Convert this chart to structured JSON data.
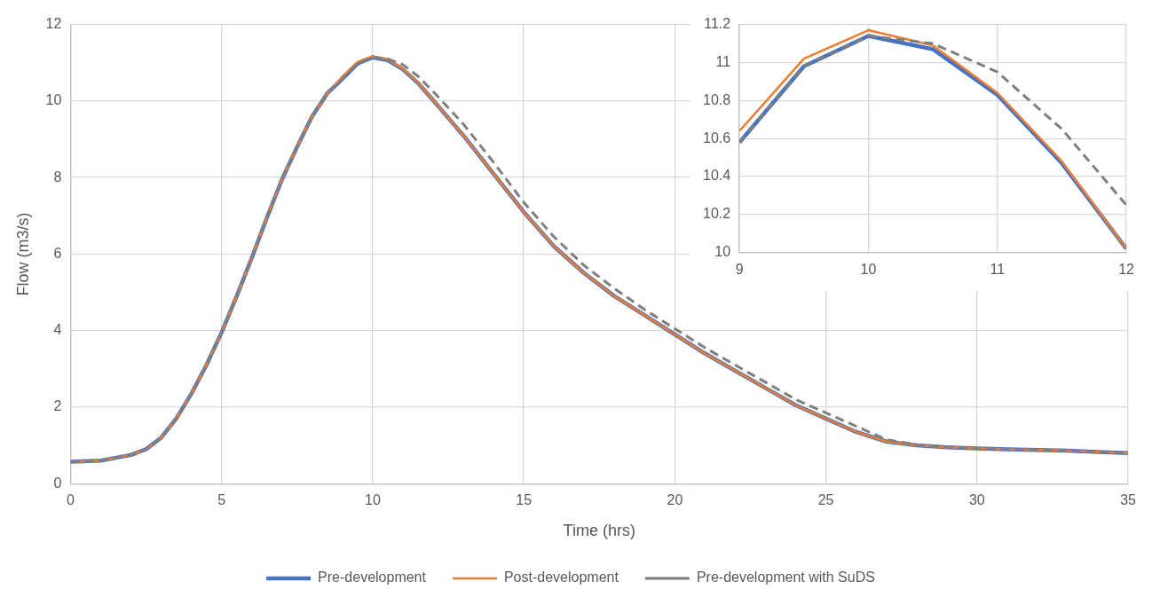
{
  "chart_data": [
    {
      "type": "line",
      "xlabel": "Time (hrs)",
      "ylabel": "Flow (m3/s)",
      "x": [
        0,
        1,
        2,
        2.5,
        3,
        3.5,
        4,
        4.5,
        5,
        5.5,
        6,
        6.5,
        7,
        7.5,
        8,
        8.5,
        9,
        9.5,
        10,
        10.5,
        11,
        11.5,
        12,
        13,
        14,
        15,
        16,
        17,
        18,
        19,
        20,
        21,
        22,
        23,
        24,
        25,
        26,
        27,
        28,
        29,
        30,
        31,
        32,
        33,
        34,
        35
      ],
      "series": [
        {
          "name": "Pre-development",
          "color": "#4472c4",
          "line_style": "solid",
          "values": [
            0.57,
            0.6,
            0.75,
            0.9,
            1.2,
            1.7,
            2.35,
            3.1,
            3.95,
            4.9,
            5.9,
            6.95,
            7.95,
            8.8,
            9.6,
            10.2,
            10.58,
            10.98,
            11.14,
            11.07,
            10.83,
            10.47,
            10.02,
            9.1,
            8.1,
            7.1,
            6.2,
            5.5,
            4.9,
            4.4,
            3.9,
            3.4,
            2.95,
            2.5,
            2.05,
            1.7,
            1.35,
            1.1,
            1.0,
            0.95,
            0.92,
            0.9,
            0.88,
            0.86,
            0.83,
            0.8
          ]
        },
        {
          "name": "Post-development",
          "color": "#ed7d31",
          "line_style": "solid",
          "values": [
            0.57,
            0.6,
            0.75,
            0.9,
            1.2,
            1.7,
            2.35,
            3.1,
            3.95,
            4.9,
            5.9,
            6.95,
            7.95,
            8.8,
            9.6,
            10.2,
            10.64,
            11.02,
            11.17,
            11.09,
            10.84,
            10.48,
            10.02,
            9.1,
            8.1,
            7.1,
            6.2,
            5.5,
            4.9,
            4.4,
            3.9,
            3.4,
            2.95,
            2.5,
            2.05,
            1.7,
            1.35,
            1.1,
            1.0,
            0.95,
            0.92,
            0.9,
            0.88,
            0.86,
            0.83,
            0.8
          ]
        },
        {
          "name": "Pre-development with SuDS",
          "color": "#7f7f7f",
          "line_style": "dashed",
          "values": [
            0.57,
            0.6,
            0.75,
            0.9,
            1.2,
            1.7,
            2.35,
            3.1,
            3.95,
            4.9,
            5.9,
            6.95,
            7.95,
            8.8,
            9.6,
            10.2,
            10.58,
            10.98,
            11.14,
            11.1,
            10.95,
            10.65,
            10.25,
            9.4,
            8.4,
            7.35,
            6.45,
            5.7,
            5.1,
            4.55,
            4.05,
            3.55,
            3.1,
            2.65,
            2.2,
            1.85,
            1.5,
            1.15,
            1.02,
            0.96,
            0.92,
            0.9,
            0.88,
            0.86,
            0.83,
            0.8
          ]
        }
      ],
      "xlim": [
        0,
        35
      ],
      "xticks": [
        0,
        5,
        10,
        15,
        20,
        25,
        30,
        35
      ],
      "ylim": [
        0,
        12
      ],
      "yticks": [
        0,
        2,
        4,
        6,
        8,
        10,
        12
      ],
      "grid": true,
      "legend": "bottom"
    },
    {
      "type": "line",
      "x": [
        9,
        9.5,
        10,
        10.5,
        11,
        11.5,
        12
      ],
      "series": [
        {
          "color": "#4472c4",
          "line_style": "solid",
          "values": [
            10.58,
            10.98,
            11.14,
            11.07,
            10.83,
            10.47,
            10.02
          ]
        },
        {
          "color": "#ed7d31",
          "line_style": "solid",
          "values": [
            10.64,
            11.02,
            11.17,
            11.09,
            10.84,
            10.48,
            10.02
          ]
        },
        {
          "color": "#7f7f7f",
          "line_style": "dashed",
          "values": [
            10.58,
            10.98,
            11.14,
            11.1,
            10.95,
            10.65,
            10.25
          ]
        }
      ],
      "xlim": [
        9,
        12
      ],
      "xticks": [
        9,
        10,
        11,
        12
      ],
      "ylim": [
        10,
        11.2
      ],
      "yticks": [
        10,
        10.2,
        10.4,
        10.6,
        10.8,
        11,
        11.2
      ],
      "grid": true,
      "legend": false
    }
  ]
}
